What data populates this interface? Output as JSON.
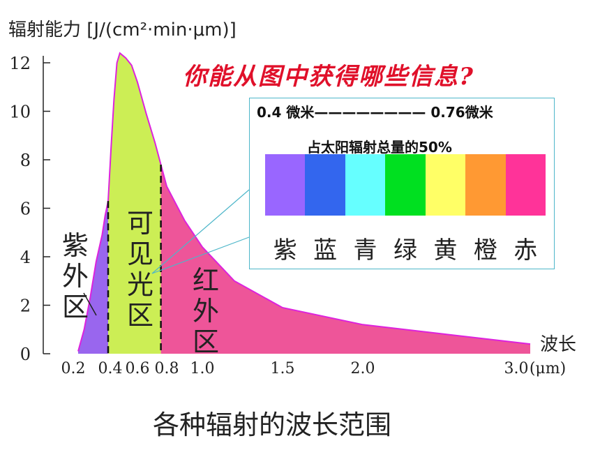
{
  "chart_data": {
    "type": "area",
    "ylabel": "辐射能力 [J/(cm²·min·μm)]",
    "xlabel": "波长",
    "xunit": "(μm)",
    "xticks": [
      "0.2",
      "0.4",
      "0.6",
      "0.8",
      "1.0",
      "1.5",
      "2.0",
      "3.0"
    ],
    "yticks": [
      "0",
      "2",
      "4",
      "6",
      "8",
      "10",
      "12"
    ],
    "ylim": [
      0,
      12.5
    ],
    "x": [
      0.2,
      0.24,
      0.28,
      0.32,
      0.36,
      0.38,
      0.4,
      0.42,
      0.44,
      0.46,
      0.48,
      0.5,
      0.52,
      0.56,
      0.6,
      0.66,
      0.72,
      0.76,
      0.8,
      0.9,
      1.0,
      1.2,
      1.5,
      2.0,
      2.5,
      3.0
    ],
    "y": [
      0.1,
      1.0,
      2.3,
      3.8,
      4.9,
      5.7,
      6.3,
      8.5,
      10.5,
      12.0,
      12.4,
      12.3,
      12.2,
      11.9,
      11.2,
      9.9,
      8.7,
      7.8,
      6.9,
      5.5,
      4.4,
      3.0,
      1.9,
      1.2,
      0.8,
      0.4
    ],
    "regions": [
      {
        "label": "紫外区",
        "from": 0.2,
        "to": 0.4,
        "color": "#9966ee"
      },
      {
        "label": "可见光区",
        "from": 0.4,
        "to": 0.76,
        "color": "#ccee55"
      },
      {
        "label": "红外区",
        "from": 0.76,
        "to": 3.0,
        "color": "#ee5599"
      }
    ],
    "caption": "各种辐射的波长范围"
  },
  "question": "你能从图中获得哪些信息?",
  "infobox": {
    "range": "0.4 微米———————— 0.76微米",
    "share": "占太阳辐射总量的50%",
    "bands": [
      {
        "name": "紫",
        "color": "#9966ff"
      },
      {
        "name": "蓝",
        "color": "#3366ee"
      },
      {
        "name": "青",
        "color": "#66ffff"
      },
      {
        "name": "绿",
        "color": "#00e020"
      },
      {
        "name": "黄",
        "color": "#ffff66"
      },
      {
        "name": "橙",
        "color": "#ff9933"
      },
      {
        "name": "赤",
        "color": "#ff3399"
      }
    ]
  },
  "colors": {
    "curve_outline": "#dd22dd",
    "callout_line": "#4db6c9"
  }
}
